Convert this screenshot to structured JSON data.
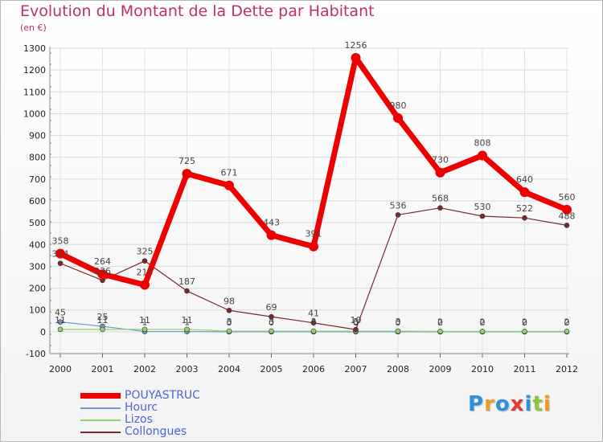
{
  "title": "Evolution du Montant de la Dette par Habitant",
  "subtitle": "(en €)",
  "logo": {
    "letters": [
      {
        "ch": "P",
        "color": "#2f8fd8"
      },
      {
        "ch": "r",
        "color": "#f29a1e"
      },
      {
        "ch": "o",
        "color": "#2f8fd8"
      },
      {
        "ch": "x",
        "color": "#e23b2e"
      },
      {
        "ch": "i",
        "color": "#2f8fd8"
      },
      {
        "ch": "t",
        "color": "#8dc63f"
      },
      {
        "ch": "i",
        "color": "#f29a1e"
      }
    ]
  },
  "chart_data": {
    "type": "line",
    "title": "Evolution du Montant de la Dette par Habitant",
    "subtitle": "(en €)",
    "xlabel": "",
    "ylabel": "",
    "ylim": [
      -100,
      1300
    ],
    "yticks": [
      -100,
      0,
      100,
      200,
      300,
      400,
      500,
      600,
      700,
      800,
      900,
      1000,
      1100,
      1200,
      1300
    ],
    "x": [
      "2000",
      "2001",
      "2002",
      "2003",
      "2004",
      "2005",
      "2006",
      "2007",
      "2008",
      "2009",
      "2010",
      "2011",
      "2012"
    ],
    "legend_position": "bottom-left",
    "series": [
      {
        "name": "POUYASTRUC",
        "color": "#ee0000",
        "width": 7,
        "marker": 6,
        "values": [
          358,
          264,
          215,
          725,
          671,
          443,
          391,
          1256,
          980,
          730,
          808,
          640,
          560
        ],
        "labels": [
          "358",
          "264",
          "215",
          "725",
          "671",
          "443",
          "391",
          "1256",
          "980",
          "730",
          "808",
          "640",
          "560"
        ]
      },
      {
        "name": "Hourc",
        "color": "#6a9bd0",
        "width": 1.2,
        "marker": 3,
        "values": [
          45,
          25,
          1,
          1,
          0,
          0,
          0,
          0,
          0,
          0,
          0,
          0,
          0
        ],
        "labels": [
          "45",
          "25",
          "1",
          "1",
          "0",
          "0",
          "0",
          "0",
          "0",
          "0",
          "0",
          "0",
          "0"
        ]
      },
      {
        "name": "Lizos",
        "color": "#8ed36a",
        "width": 1.2,
        "marker": 3,
        "values": [
          11,
          11,
          11,
          11,
          3,
          3,
          3,
          3,
          3,
          2,
          2,
          2,
          2
        ],
        "labels": [
          "11",
          "11",
          "11",
          "11",
          "3",
          "3",
          "3",
          "3",
          "3",
          "2",
          "2",
          "2",
          "2"
        ]
      },
      {
        "name": "Collongues",
        "color": "#7a2a2a",
        "width": 1.2,
        "marker": 3,
        "values": [
          314,
          236,
          325,
          187,
          98,
          69,
          41,
          10,
          536,
          568,
          530,
          522,
          488
        ],
        "labels": [
          "314",
          "236",
          "325",
          "187",
          "98",
          "69",
          "41",
          "10",
          "536",
          "568",
          "530",
          "522",
          "488"
        ]
      }
    ]
  }
}
